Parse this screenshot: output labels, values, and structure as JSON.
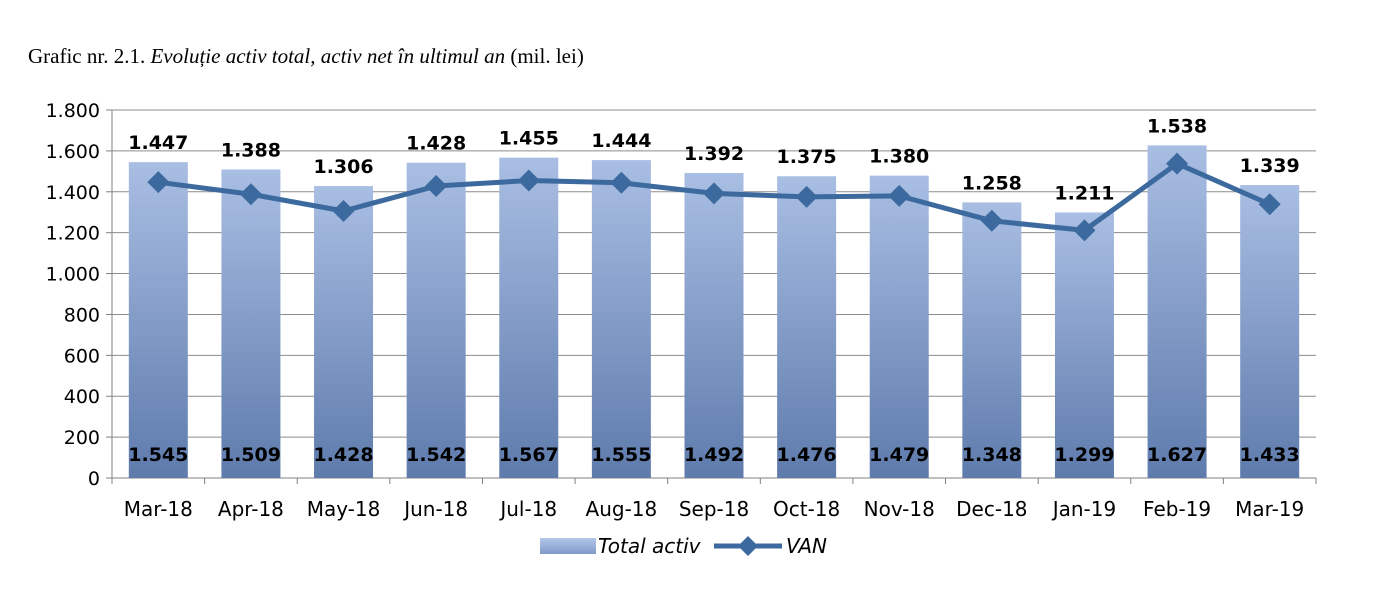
{
  "caption": {
    "prefix": "Grafic nr. 2.1. ",
    "part1": "Evoluție",
    "part2": " activ total, activ net în ultimul an",
    "suffix": " (mil. lei)"
  },
  "chart_data": {
    "type": "bar",
    "categories": [
      "Mar-18",
      "Apr-18",
      "May-18",
      "Jun-18",
      "Jul-18",
      "Aug-18",
      "Sep-18",
      "Oct-18",
      "Nov-18",
      "Dec-18",
      "Jan-19",
      "Feb-19",
      "Mar-19"
    ],
    "series": [
      {
        "name": "Total activ",
        "type": "bar",
        "values": [
          1545,
          1509,
          1428,
          1542,
          1567,
          1555,
          1492,
          1476,
          1479,
          1348,
          1299,
          1627,
          1433
        ],
        "labels": [
          "1.545",
          "1.509",
          "1.428",
          "1.542",
          "1.567",
          "1.555",
          "1.492",
          "1.476",
          "1.479",
          "1.348",
          "1.299",
          "1.627",
          "1.433"
        ],
        "color": "#8FA8D4"
      },
      {
        "name": "VAN",
        "type": "line",
        "values": [
          1447,
          1388,
          1306,
          1428,
          1455,
          1444,
          1392,
          1375,
          1380,
          1258,
          1211,
          1538,
          1339
        ],
        "labels": [
          "1.447",
          "1.388",
          "1.306",
          "1.428",
          "1.455",
          "1.444",
          "1.392",
          "1.375",
          "1.380",
          "1.258",
          "1.211",
          "1.538",
          "1.339"
        ],
        "color": "#3D6A9E"
      }
    ],
    "ylim": [
      0,
      1800
    ],
    "yticks": [
      0,
      200,
      400,
      600,
      800,
      1000,
      1200,
      1400,
      1600,
      1800
    ],
    "ytick_labels": [
      "0",
      "200",
      "400",
      "600",
      "800",
      "1.000",
      "1.200",
      "1.400",
      "1.600",
      "1.800"
    ],
    "grid": true,
    "legend_position": "bottom-center"
  }
}
